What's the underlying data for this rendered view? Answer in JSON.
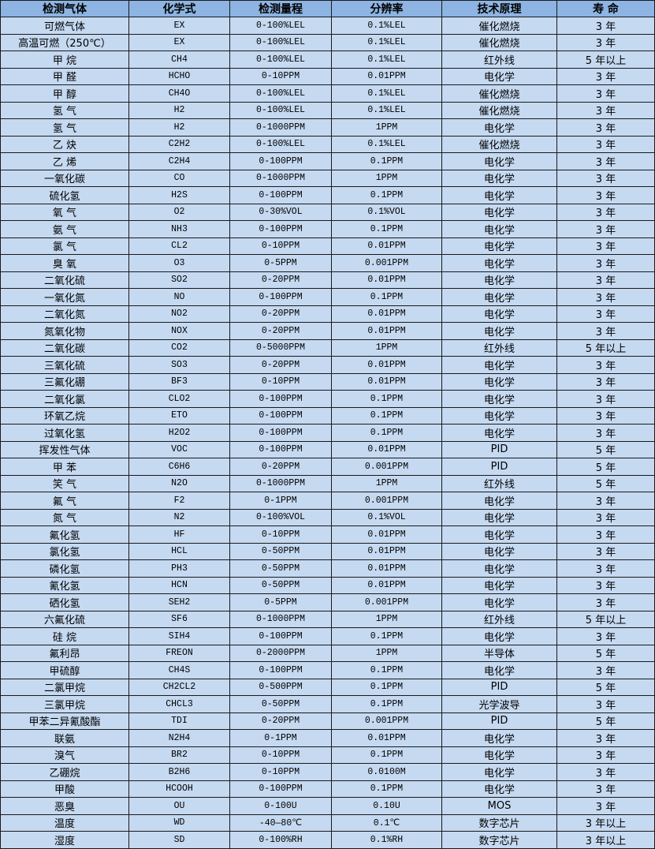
{
  "colors": {
    "header_bg": "#8DB4E2",
    "row_bg": "#C5D9F1",
    "border": "#1a1a1a"
  },
  "table": {
    "headers": [
      "检测气体",
      "化学式",
      "检测量程",
      "分辨率",
      "技术原理",
      "寿 命"
    ],
    "rows": [
      [
        "可燃气体",
        "EX",
        "0-100%LEL",
        "0.1%LEL",
        "催化燃烧",
        "3 年"
      ],
      [
        "高温可燃（250℃）",
        "EX",
        "0-100%LEL",
        "0.1%LEL",
        "催化燃烧",
        "3 年"
      ],
      [
        "甲 烷",
        "CH4",
        "0-100%LEL",
        "0.1%LEL",
        "红外线",
        "5 年以上"
      ],
      [
        "甲 醛",
        "HCHO",
        "0-10PPM",
        "0.01PPM",
        "电化学",
        "3 年"
      ],
      [
        "甲 醇",
        "CH4O",
        "0-100%LEL",
        "0.1%LEL",
        "催化燃烧",
        "3 年"
      ],
      [
        "氢 气",
        "H2",
        "0-100%LEL",
        "0.1%LEL",
        "催化燃烧",
        "3 年"
      ],
      [
        "氢 气",
        "H2",
        "0-1000PPM",
        "1PPM",
        "电化学",
        "3 年"
      ],
      [
        "乙 炔",
        "C2H2",
        "0-100%LEL",
        "0.1%LEL",
        "催化燃烧",
        "3 年"
      ],
      [
        "乙 烯",
        "C2H4",
        "0-100PPM",
        "0.1PPM",
        "电化学",
        "3 年"
      ],
      [
        "一氧化碳",
        "CO",
        "0-1000PPM",
        "1PPM",
        "电化学",
        "3 年"
      ],
      [
        "硫化氢",
        "H2S",
        "0-100PPM",
        "0.1PPM",
        "电化学",
        "3 年"
      ],
      [
        "氧 气",
        "O2",
        "0-30%VOL",
        "0.1%VOL",
        "电化学",
        "3 年"
      ],
      [
        "氨 气",
        "NH3",
        "0-100PPM",
        "0.1PPM",
        "电化学",
        "3 年"
      ],
      [
        "氯 气",
        "CL2",
        "0-10PPM",
        "0.01PPM",
        "电化学",
        "3 年"
      ],
      [
        "臭 氧",
        "O3",
        "0-5PPM",
        "0.001PPM",
        "电化学",
        "3 年"
      ],
      [
        "二氧化硫",
        "SO2",
        "0-20PPM",
        "0.01PPM",
        "电化学",
        "3 年"
      ],
      [
        "一氧化氮",
        "NO",
        "0-100PPM",
        "0.1PPM",
        "电化学",
        "3 年"
      ],
      [
        "二氧化氮",
        "NO2",
        "0-20PPM",
        "0.01PPM",
        "电化学",
        "3 年"
      ],
      [
        "氮氧化物",
        "NOX",
        "0-20PPM",
        "0.01PPM",
        "电化学",
        "3 年"
      ],
      [
        "二氧化碳",
        "CO2",
        "0-5000PPM",
        "1PPM",
        "红外线",
        "5 年以上"
      ],
      [
        "三氧化硫",
        "SO3",
        "0-20PPM",
        "0.01PPM",
        "电化学",
        "3 年"
      ],
      [
        "三氟化硼",
        "BF3",
        "0-10PPM",
        "0.01PPM",
        "电化学",
        "3 年"
      ],
      [
        "二氧化氯",
        "CLO2",
        "0-100PPM",
        "0.1PPM",
        "电化学",
        "3 年"
      ],
      [
        "环氧乙烷",
        "ETO",
        "0-100PPM",
        "0.1PPM",
        "电化学",
        "3 年"
      ],
      [
        "过氧化氢",
        "H2O2",
        "0-100PPM",
        "0.1PPM",
        "电化学",
        "3 年"
      ],
      [
        "挥发性气体",
        "VOC",
        "0-100PPM",
        "0.01PPM",
        "PID",
        "5 年"
      ],
      [
        "甲 苯",
        "C6H6",
        "0-20PPM",
        "0.001PPM",
        "PID",
        "5 年"
      ],
      [
        "笑 气",
        "N2O",
        "0-1000PPM",
        "1PPM",
        "红外线",
        "5 年"
      ],
      [
        "氟 气",
        "F2",
        "0-1PPM",
        "0.001PPM",
        "电化学",
        "3 年"
      ],
      [
        "氮 气",
        "N2",
        "0-100%VOL",
        "0.1%VOL",
        "电化学",
        "3 年"
      ],
      [
        "氟化氢",
        "HF",
        "0-10PPM",
        "0.01PPM",
        "电化学",
        "3 年"
      ],
      [
        "氯化氢",
        "HCL",
        "0-50PPM",
        "0.01PPM",
        "电化学",
        "3 年"
      ],
      [
        "磷化氢",
        "PH3",
        "0-50PPM",
        "0.01PPM",
        "电化学",
        "3 年"
      ],
      [
        "氰化氢",
        "HCN",
        "0-50PPM",
        "0.01PPM",
        "电化学",
        "3 年"
      ],
      [
        "硒化氢",
        "SEH2",
        "0-5PPM",
        "0.001PPM",
        "电化学",
        "3 年"
      ],
      [
        "六氟化硫",
        "SF6",
        "0-1000PPM",
        "1PPM",
        "红外线",
        "5 年以上"
      ],
      [
        "硅 烷",
        "SIH4",
        "0-100PPM",
        "0.1PPM",
        "电化学",
        "3 年"
      ],
      [
        "氟利昂",
        "FREON",
        "0-2000PPM",
        "1PPM",
        "半导体",
        "5 年"
      ],
      [
        "甲硫醇",
        "CH4S",
        "0-100PPM",
        "0.1PPM",
        "电化学",
        "3 年"
      ],
      [
        "二氯甲烷",
        "CH2CL2",
        "0-500PPM",
        "0.1PPM",
        "PID",
        "5 年"
      ],
      [
        "三氯甲烷",
        "CHCL3",
        "0-50PPM",
        "0.1PPM",
        "光学波导",
        "3 年"
      ],
      [
        "甲苯二异氰酸酯",
        "TDI",
        "0-20PPM",
        "0.001PPM",
        "PID",
        "5 年"
      ],
      [
        "联氨",
        "N2H4",
        "0-1PPM",
        "0.01PPM",
        "电化学",
        "3 年"
      ],
      [
        "溴气",
        "BR2",
        "0-10PPM",
        "0.1PPM",
        "电化学",
        "3 年"
      ],
      [
        "乙硼烷",
        "B2H6",
        "0-10PPM",
        "0.0100M",
        "电化学",
        "3 年"
      ],
      [
        "甲酸",
        "HCOOH",
        "0-100PPM",
        "0.1PPM",
        "电化学",
        "3 年"
      ],
      [
        "恶臭",
        "OU",
        "0-100U",
        "0.10U",
        "MOS",
        "3 年"
      ],
      [
        "温度",
        "WD",
        "-40—80℃",
        "0.1℃",
        "数字芯片",
        "3 年以上"
      ],
      [
        "湿度",
        "SD",
        "0-100%RH",
        "0.1%RH",
        "数字芯片",
        "3 年以上"
      ]
    ]
  }
}
